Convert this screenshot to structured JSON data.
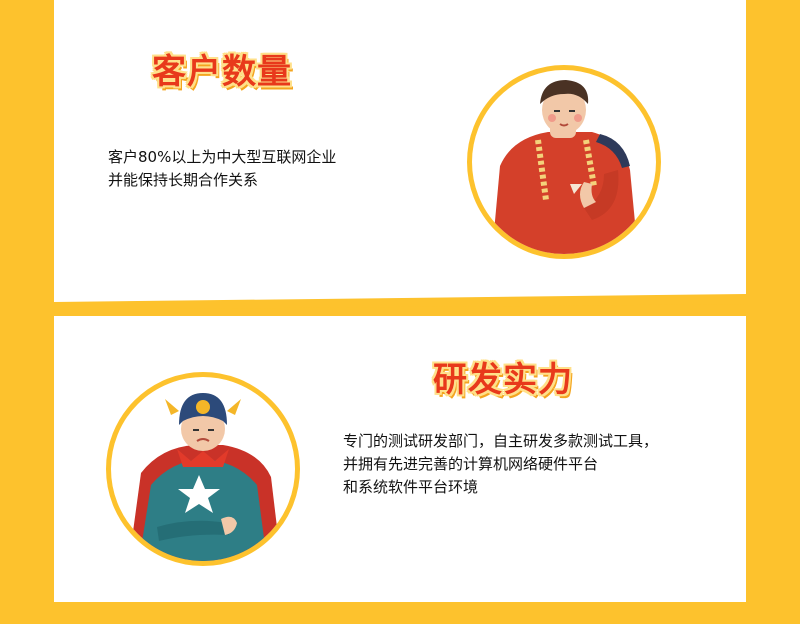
{
  "sections": {
    "customers": {
      "title": "客户数量",
      "lines": [
        "客户80%以上为中大型互联网企业",
        "并能保持长期合作关系"
      ],
      "illustration": "man-in-red-sweater-illustration"
    },
    "rnd": {
      "title": "研发实力",
      "lines": [
        "专门的测试研发部门，自主研发多款测试工具，",
        "并拥有先进完善的计算机网络硬件平台",
        "和系统软件平台环境"
      ],
      "illustration": "superhero-with-star-illustration"
    }
  },
  "colors": {
    "background": "#FDC22D",
    "title": "#E8391B",
    "text": "#111111",
    "panel": "#FFFFFF"
  }
}
